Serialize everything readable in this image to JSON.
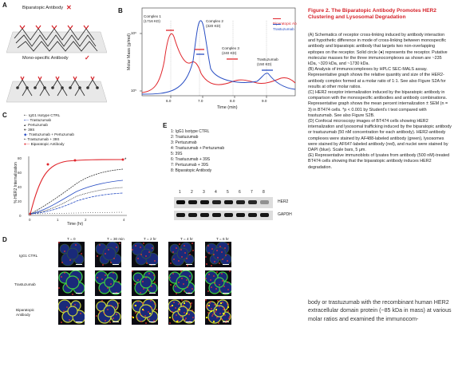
{
  "panelA": {
    "label": "A",
    "bipar_title": "Biparatopic Antibody",
    "mono_title": "Mono-specific Antibody",
    "bipar_mark": "✕",
    "mono_mark": "✓",
    "colors": {
      "receptor": "#333333",
      "antibody": "#d6232a",
      "membrane": "#e6e6e6"
    }
  },
  "panelB": {
    "label": "B",
    "ylabel": "Molar Mass (g/mol)",
    "xlabel": "Time (min)",
    "legend": [
      "Biparatopic Ab",
      "Trastuzumab"
    ],
    "annotations": [
      "Complex 1\n(1716 KD)",
      "Complex 2\n(320 KD)",
      "Complex 3\n(240 KD)",
      "Trastuzumab\n(150 KD)"
    ],
    "ytick_labels": [
      "10⁶",
      "10⁵"
    ],
    "xtick_labels": [
      "6.0",
      "7.0",
      "8.0",
      "9.0"
    ]
  },
  "panelC": {
    "label": "C",
    "legend": [
      "IgG1 Isotype CTRL",
      "Trastuzumab",
      "Pertuzumab",
      "39S",
      "Trastuzumab + Pertuzumab",
      "Trastuzumab + 39S",
      "Biparatopic Antibody"
    ],
    "ylabel": "% HER2 Internalization",
    "xlabel": "Time (hr)",
    "star": "*"
  },
  "panelD": {
    "label": "D",
    "columns": [
      "T = 0",
      "T = 30 min",
      "T = 2 hr",
      "T = 4 hr",
      "T = 6 hr"
    ],
    "rows": [
      "IgG1 CTRL",
      "Trastuzumab",
      "Biparatopic\nAntibody"
    ]
  },
  "panelE": {
    "label": "E",
    "legend": [
      "1: IgG1 Isotype CTRL",
      "2: Trastuzumab",
      "3: Pertuzumab",
      "4: Trastuzumab + Pertuzumab",
      "5: 39S",
      "6: Trastuzumab + 39S",
      "7: Pertuzumab + 39S",
      "8: Biparatopic Antibody"
    ],
    "lanes": [
      "1",
      "2",
      "3",
      "4",
      "5",
      "6",
      "7",
      "8"
    ],
    "bands": [
      "HER2",
      "GAPDH"
    ],
    "her2_intensity": [
      0.95,
      0.9,
      0.92,
      0.85,
      0.9,
      0.85,
      0.82,
      0.35
    ],
    "gapdh_intensity": [
      0.9,
      0.9,
      0.9,
      0.9,
      0.9,
      0.9,
      0.9,
      0.9
    ]
  },
  "caption": {
    "title": "Figure 2. The Biparatopic Antibody Promotes HER2 Clustering and Lysosomal Degradation",
    "paragraphs": [
      "(A) Schematics of receptor cross-linking induced by antibody interaction and hypothetic difference in mode of cross-linking between monospecific antibody and biparatopic antibody that targets two non-overlapping epitopes on the receptor. Solid circle (●) represents the receptor. Putative molecular masses for the three immunocomplexes as shown are ~235 kDa, ~320 kDa, and ~1730 kDa.",
      "(B) Analysis of immunocomplexes by HPLC SEC-MALS assay. Representative graph shows the relative quantity and size of the HER2-antibody complex formed at a molar ratio of 1:1. See also Figure S2A for results at other molar ratios.",
      "(C) HER2 receptor internalization induced by the biparatopic antibody in comparison with the monospecific antibodies and antibody combinations. Representative graph shows the mean percent internalization ± SEM (n = 3) in BT474 cells. *p < 0.001 by Student's t test compared with trastuzumab. See also Figure S2B.",
      "(D) Confocal microscopy images of BT474 cells showing HER2 internalization and lysosomal trafficking induced by the biparatopic antibody or trastuzumab (50 nM concentration for each antibody). HER2-antibody complexes were stained by AF488-labeled antibody (green), lysosomes were stained by AF647-labeled antibody (red), and nuclei were stained by DAPI (blue). Scale bars, 5 μm.",
      "(E) Representative immunoblots of lysates from antibody (500 nM)-treated BT474 cells showing that the biparatopic antibody induces HER2 degradation."
    ]
  },
  "bodytext": "body or trastuzumab with the recombinant human HER2 extracellular domain protein (~85 kDa in mass) at various molar ratios and examined the immunocom-"
}
